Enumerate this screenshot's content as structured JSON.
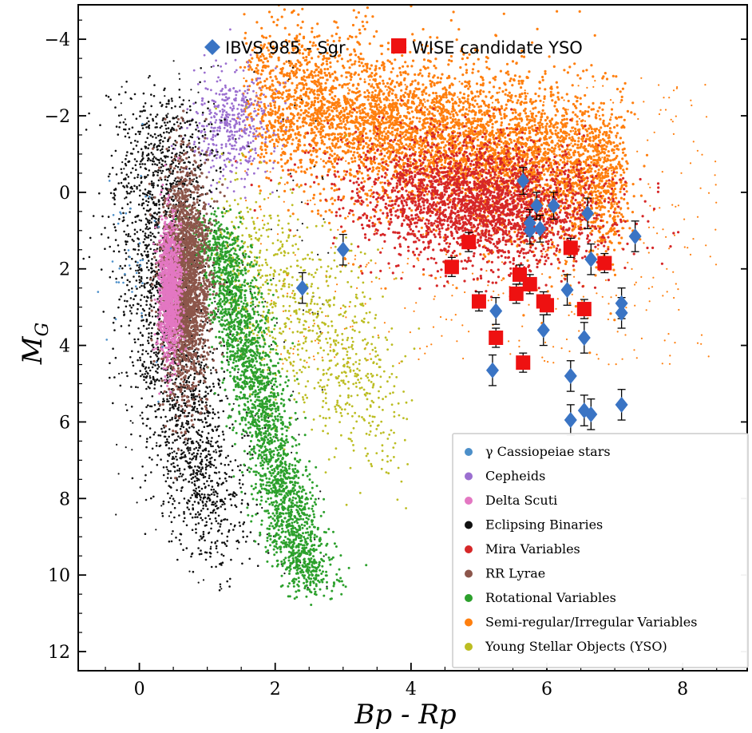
{
  "chart_data": {
    "type": "scatter",
    "xlabel": "Bp - Rp",
    "ylabel": "M",
    "ylabel_sub": "G",
    "xlim": [
      -0.9,
      8.95
    ],
    "ylim": [
      12.5,
      -4.9
    ],
    "y_inverted": true,
    "x_ticks": [
      0,
      2,
      4,
      6,
      8
    ],
    "y_ticks": [
      -4,
      -2,
      0,
      2,
      4,
      6,
      8,
      10,
      12
    ],
    "x_tick_labels": [
      "0",
      "2",
      "4",
      "6",
      "8"
    ],
    "y_tick_labels": [
      "−4",
      "−2",
      "0",
      "2",
      "4",
      "6",
      "8",
      "10",
      "12"
    ],
    "grid": false,
    "background_populations": [
      {
        "name": "γ Cassiopeiae stars",
        "color": "#4c8fc9",
        "x_range": [
          -0.4,
          0.3
        ],
        "y_range": [
          -0.5,
          3.5
        ]
      },
      {
        "name": "Cepheids",
        "color": "#9b6fd0",
        "x_range": [
          0.9,
          2.1
        ],
        "y_range": [
          -3.5,
          0.5
        ]
      },
      {
        "name": "Delta Scuti",
        "color": "#e377c2",
        "x_range": [
          0.25,
          0.65
        ],
        "y_range": [
          1.0,
          4.2
        ]
      },
      {
        "name": "Eclipsing Binaries",
        "color": "#111111",
        "x_range": [
          -0.3,
          2.5
        ],
        "y_range": [
          -3.5,
          10.0
        ]
      },
      {
        "name": "Mira Variables",
        "color": "#d62728",
        "x_range": [
          3.5,
          7.0
        ],
        "y_range": [
          -1.0,
          2.5
        ]
      },
      {
        "name": "RR Lyrae",
        "color": "#8c564b",
        "x_range": [
          0.3,
          1.0
        ],
        "y_range": [
          -0.3,
          5.8
        ]
      },
      {
        "name": "Rotational Variables",
        "color": "#2ca02c",
        "x_range": [
          0.7,
          3.2
        ],
        "y_range": [
          0.5,
          11.0
        ]
      },
      {
        "name": "Semi-regular/Irregular Variables",
        "color": "#ff7f0e",
        "x_range": [
          1.5,
          8.0
        ],
        "y_range": [
          -3.2,
          4.0
        ]
      },
      {
        "name": "Young Stellar Objects (YSO)",
        "color": "#bcbd22",
        "x_range": [
          1.0,
          3.8
        ],
        "y_range": [
          1.0,
          9.0
        ]
      }
    ],
    "series": [
      {
        "name": "IBVS 985 - Sgr",
        "marker": "diamond",
        "color": "#3a74c4",
        "x": [
          2.4,
          3.0,
          5.2,
          5.25,
          5.65,
          5.75,
          5.75,
          5.85,
          5.9,
          5.95,
          6.1,
          6.3,
          6.35,
          6.35,
          6.55,
          6.55,
          6.6,
          6.65,
          6.65,
          7.1,
          7.1,
          7.1,
          7.3
        ],
        "y": [
          2.5,
          1.5,
          4.65,
          3.1,
          -0.3,
          0.8,
          1.0,
          0.35,
          0.95,
          3.6,
          0.35,
          2.55,
          4.8,
          5.95,
          3.8,
          5.7,
          0.55,
          1.75,
          5.8,
          2.9,
          3.15,
          5.55,
          1.15
        ],
        "y_err": [
          0.4,
          0.4,
          0.4,
          0.35,
          0.35,
          0.35,
          0.35,
          0.35,
          0.35,
          0.4,
          0.35,
          0.4,
          0.4,
          0.4,
          0.4,
          0.4,
          0.4,
          0.4,
          0.4,
          0.4,
          0.4,
          0.4,
          0.4
        ]
      },
      {
        "name": "WISE candidate YSO",
        "marker": "square",
        "color": "#ee1111",
        "x": [
          4.6,
          4.85,
          5.0,
          5.25,
          5.55,
          5.6,
          5.65,
          5.75,
          5.95,
          6.0,
          6.35,
          6.55,
          6.85
        ],
        "y": [
          1.95,
          1.3,
          2.85,
          3.8,
          2.65,
          2.15,
          4.45,
          2.4,
          2.85,
          2.95,
          1.45,
          3.05,
          1.85
        ],
        "y_err": [
          0.25,
          0.25,
          0.25,
          0.25,
          0.25,
          0.25,
          0.25,
          0.25,
          0.25,
          0.25,
          0.25,
          0.25,
          0.25
        ]
      }
    ]
  }
}
